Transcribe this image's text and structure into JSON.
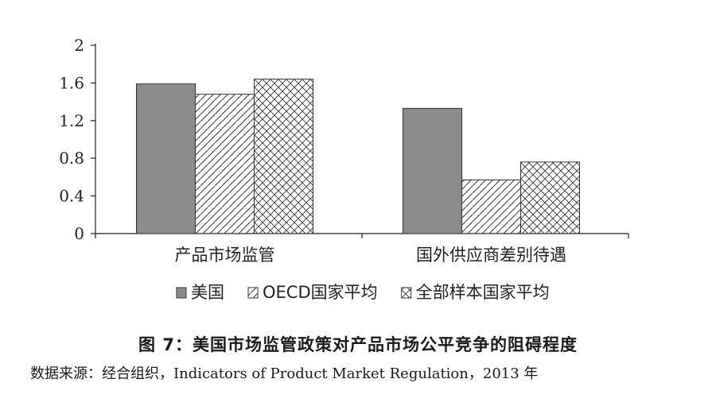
{
  "chart_data": {
    "type": "bar",
    "categories": [
      "产品市场监管",
      "国外供应商差别待遇"
    ],
    "series": [
      {
        "name": "美国",
        "values": [
          1.59,
          1.33
        ],
        "color": "#8c8c8c",
        "pattern": "solid"
      },
      {
        "name": "OECD国家平均",
        "values": [
          1.48,
          0.57
        ],
        "color": "#ffffff",
        "pattern": "diagonal"
      },
      {
        "name": "全部样本国家平均",
        "values": [
          1.64,
          0.76
        ],
        "color": "#ffffff",
        "pattern": "crosshatch"
      }
    ],
    "yticks": [
      "0",
      "0.4",
      "0.8",
      "1.2",
      "1.6",
      "2"
    ],
    "ylim": [
      0,
      2
    ],
    "legend_position": "bottom",
    "grid": false
  },
  "caption": "图 7：美国市场监管政策对产品市场公平竞争的阻碍程度",
  "source": "数据来源：经合组织，Indicators of Product Market Regulation，2013 年"
}
